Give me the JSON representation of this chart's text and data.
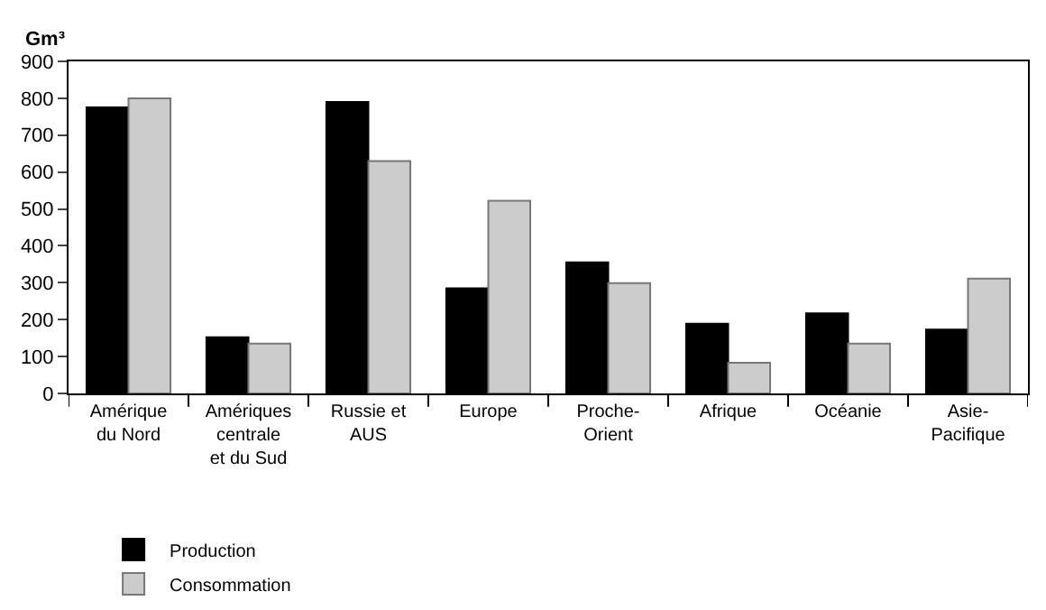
{
  "chart_data": {
    "type": "bar",
    "ylabel": "Gm³",
    "categories": [
      "Amérique du Nord",
      "Amériques centrale et du Sud",
      "Russie et AUS",
      "Europe",
      "Proche-Orient",
      "Afrique",
      "Océanie",
      "Asie-Pacifique"
    ],
    "series": [
      {
        "name": "Production",
        "color": "#000000",
        "values": [
          775,
          152,
          790,
          285,
          355,
          189,
          217,
          173
        ]
      },
      {
        "name": "Consommation",
        "color": "#cccccc",
        "values": [
          800,
          135,
          630,
          522,
          299,
          83,
          135,
          311
        ]
      }
    ],
    "ylim": [
      0,
      900
    ],
    "yticks": [
      0,
      100,
      200,
      300,
      400,
      500,
      600,
      700,
      800,
      900
    ],
    "legend": "bottom"
  }
}
